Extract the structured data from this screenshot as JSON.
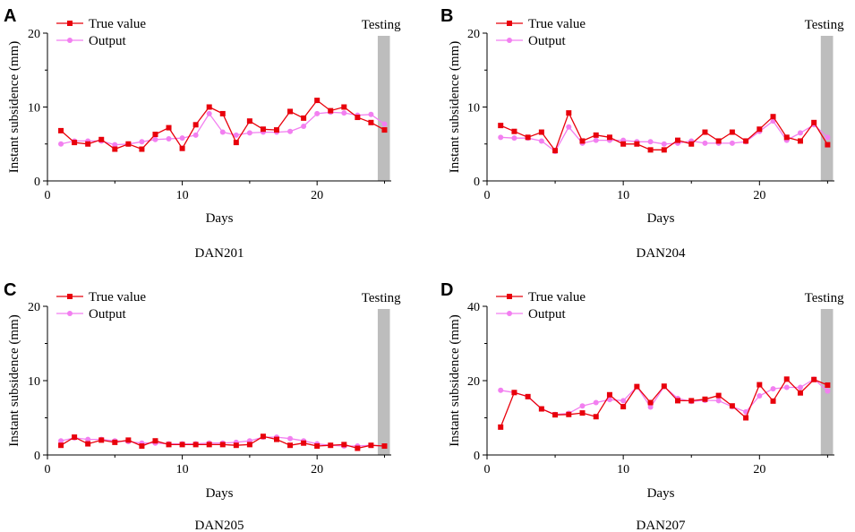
{
  "colors": {
    "true_value": "#e8000b",
    "output": "#f27ff0",
    "testing_band": "#bdbdbd"
  },
  "chart_data": [
    {
      "panel": "A",
      "caption": "DAN201",
      "type": "line",
      "xlabel": "Days",
      "ylabel": "Instant subsidence (mm)",
      "xlim": [
        0,
        25.5
      ],
      "ylim": [
        0,
        20
      ],
      "xticks": [
        0,
        10,
        20
      ],
      "yticks": [
        0,
        10,
        20
      ],
      "testing_label": "Testing",
      "testing_range": [
        24.5,
        25.4
      ],
      "legend": [
        "True value",
        "Output"
      ],
      "x": [
        1,
        2,
        3,
        4,
        5,
        6,
        7,
        8,
        9,
        10,
        11,
        12,
        13,
        14,
        15,
        16,
        17,
        18,
        19,
        20,
        21,
        22,
        23,
        24,
        25
      ],
      "series": [
        {
          "name": "True value",
          "values": [
            6.8,
            5.2,
            5.0,
            5.6,
            4.3,
            5.0,
            4.3,
            6.3,
            7.2,
            4.4,
            7.6,
            10.0,
            9.1,
            5.2,
            8.1,
            7.0,
            6.9,
            9.4,
            8.5,
            10.9,
            9.5,
            10.0,
            8.6,
            7.9,
            6.9
          ]
        },
        {
          "name": "Output",
          "values": [
            5.0,
            5.4,
            5.4,
            5.4,
            4.9,
            5.0,
            5.3,
            5.6,
            5.7,
            5.8,
            6.2,
            9.1,
            6.6,
            6.2,
            6.5,
            6.6,
            6.6,
            6.7,
            7.4,
            9.1,
            9.3,
            9.2,
            8.9,
            9.0,
            7.7
          ]
        }
      ]
    },
    {
      "panel": "B",
      "caption": "DAN204",
      "type": "line",
      "xlabel": "Days",
      "ylabel": "Instant subsidence (mm)",
      "xlim": [
        0,
        25.5
      ],
      "ylim": [
        0,
        20
      ],
      "xticks": [
        0,
        10,
        20
      ],
      "yticks": [
        0,
        10,
        20
      ],
      "testing_label": "Testing",
      "testing_range": [
        24.5,
        25.4
      ],
      "legend": [
        "True value",
        "Output"
      ],
      "x": [
        1,
        2,
        3,
        4,
        5,
        6,
        7,
        8,
        9,
        10,
        11,
        12,
        13,
        14,
        15,
        16,
        17,
        18,
        19,
        20,
        21,
        22,
        23,
        24,
        25
      ],
      "series": [
        {
          "name": "True value",
          "values": [
            7.5,
            6.7,
            5.9,
            6.6,
            4.1,
            9.2,
            5.4,
            6.2,
            5.9,
            5.0,
            5.0,
            4.2,
            4.2,
            5.5,
            5.0,
            6.6,
            5.4,
            6.6,
            5.4,
            7.0,
            8.7,
            5.9,
            5.4,
            7.9,
            4.9
          ]
        },
        {
          "name": "Output",
          "values": [
            5.9,
            5.8,
            5.8,
            5.4,
            4.0,
            7.3,
            5.1,
            5.5,
            5.5,
            5.5,
            5.3,
            5.3,
            5.0,
            5.1,
            5.4,
            5.1,
            5.1,
            5.1,
            5.3,
            6.7,
            8.1,
            5.5,
            6.5,
            7.6,
            5.9
          ]
        }
      ]
    },
    {
      "panel": "C",
      "caption": "DAN205",
      "type": "line",
      "xlabel": "Days",
      "ylabel": "Instant subsidence (mm)",
      "xlim": [
        0,
        25.5
      ],
      "ylim": [
        0,
        20
      ],
      "xticks": [
        0,
        10,
        20
      ],
      "yticks": [
        0,
        10,
        20
      ],
      "testing_label": "Testing",
      "testing_range": [
        24.5,
        25.4
      ],
      "legend": [
        "True value",
        "Output"
      ],
      "x": [
        1,
        2,
        3,
        4,
        5,
        6,
        7,
        8,
        9,
        10,
        11,
        12,
        13,
        14,
        15,
        16,
        17,
        18,
        19,
        20,
        21,
        22,
        23,
        24,
        25
      ],
      "series": [
        {
          "name": "True value",
          "values": [
            1.3,
            2.4,
            1.5,
            2.0,
            1.7,
            2.0,
            1.2,
            1.9,
            1.4,
            1.4,
            1.4,
            1.4,
            1.4,
            1.3,
            1.4,
            2.5,
            2.1,
            1.3,
            1.6,
            1.2,
            1.3,
            1.4,
            0.9,
            1.3,
            1.2
          ]
        },
        {
          "name": "Output",
          "values": [
            1.9,
            2.3,
            2.1,
            2.1,
            1.9,
            1.8,
            1.6,
            1.6,
            1.5,
            1.5,
            1.5,
            1.6,
            1.6,
            1.7,
            1.9,
            2.4,
            2.4,
            2.2,
            1.9,
            1.5,
            1.3,
            1.2,
            1.2,
            1.3,
            1.2
          ]
        }
      ]
    },
    {
      "panel": "D",
      "caption": "DAN207",
      "type": "line",
      "xlabel": "Days",
      "ylabel": "Instant subsidence (mm)",
      "xlim": [
        0,
        25.5
      ],
      "ylim": [
        0,
        40
      ],
      "xticks": [
        0,
        10,
        20
      ],
      "yticks": [
        0,
        20,
        40
      ],
      "testing_label": "Testing",
      "testing_range": [
        24.5,
        25.4
      ],
      "legend": [
        "True value",
        "Output"
      ],
      "x": [
        1,
        2,
        3,
        4,
        5,
        6,
        7,
        8,
        9,
        10,
        11,
        12,
        13,
        14,
        15,
        16,
        17,
        18,
        19,
        20,
        21,
        22,
        23,
        24,
        25
      ],
      "series": [
        {
          "name": "True value",
          "values": [
            7.5,
            16.8,
            15.7,
            12.4,
            10.8,
            10.9,
            11.3,
            10.3,
            16.2,
            13.0,
            18.4,
            14.1,
            18.5,
            14.6,
            14.6,
            15.0,
            16.0,
            13.2,
            10.0,
            18.9,
            14.5,
            20.4,
            16.7,
            20.3,
            18.8
          ]
        },
        {
          "name": "Output",
          "values": [
            17.4,
            16.8,
            15.7,
            12.4,
            10.9,
            11.2,
            13.2,
            14.1,
            14.9,
            14.6,
            18.4,
            12.9,
            18.4,
            15.2,
            14.4,
            14.7,
            14.6,
            13.0,
            11.6,
            15.9,
            17.8,
            18.2,
            18.2,
            20.4,
            17.2
          ]
        }
      ]
    }
  ]
}
